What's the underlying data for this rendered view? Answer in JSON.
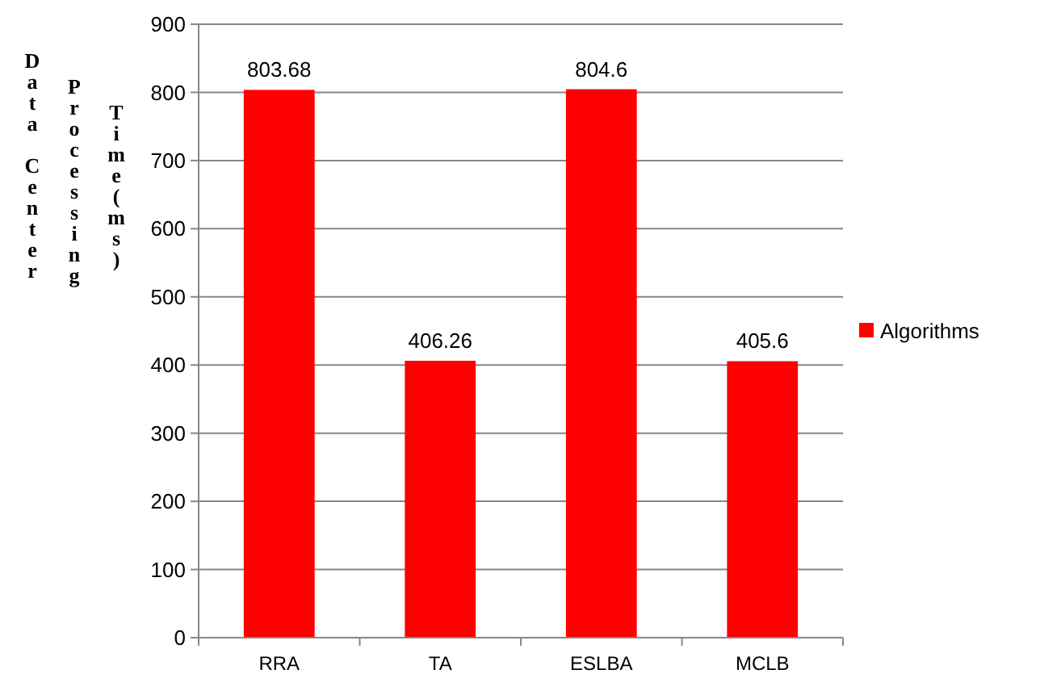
{
  "chart_data": {
    "type": "bar",
    "ylabel": "Data Center Processing Time(ms)",
    "categories": [
      "RRA",
      "TA",
      "ESLBA",
      "MCLB"
    ],
    "series": [
      {
        "name": "Algorithms",
        "color": "#ff0000",
        "values": [
          803.68,
          406.26,
          804.6,
          405.6
        ]
      }
    ],
    "ylim": [
      0,
      900
    ],
    "yticks": [
      0,
      100,
      200,
      300,
      400,
      500,
      600,
      700,
      800,
      900
    ],
    "grid": "y",
    "legend": "right",
    "data_labels": true
  }
}
